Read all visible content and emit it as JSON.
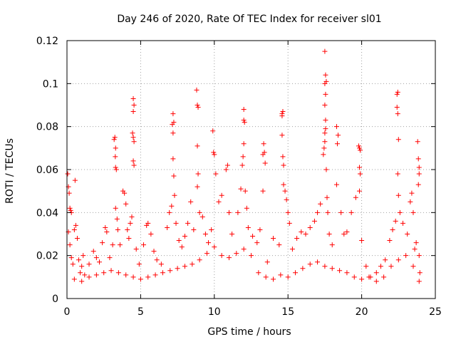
{
  "chart_data": {
    "type": "scatter",
    "title": "Day 246 of 2020, Rate Of TEC Index for receiver sl01",
    "xlabel": "GPS time / hours",
    "ylabel": "ROTI / TECUs",
    "xlim": [
      0,
      25
    ],
    "ylim": [
      0,
      0.12
    ],
    "xticks": [
      "0",
      "5",
      "10",
      "15",
      "20",
      "25"
    ],
    "yticks": [
      "0",
      "0.02",
      "0.04",
      "0.06",
      "0.08",
      "0.1",
      "0.12"
    ],
    "grid": true,
    "marker": "+",
    "color": "#ff0000",
    "series": [
      {
        "points": [
          [
            0.05,
            0.058
          ],
          [
            0.1,
            0.052
          ],
          [
            0.15,
            0.049
          ],
          [
            0.2,
            0.042
          ],
          [
            0.25,
            0.041
          ],
          [
            0.3,
            0.04
          ],
          [
            0.1,
            0.031
          ],
          [
            0.2,
            0.025
          ],
          [
            0.3,
            0.019
          ],
          [
            0.4,
            0.016
          ],
          [
            0.5,
            0.032
          ],
          [
            0.6,
            0.034
          ],
          [
            0.7,
            0.028
          ],
          [
            0.55,
            0.055
          ],
          [
            0.8,
            0.018
          ],
          [
            0.9,
            0.012
          ],
          [
            1.0,
            0.015
          ],
          [
            1.1,
            0.02
          ],
          [
            1.2,
            0.011
          ],
          [
            1.5,
            0.016
          ],
          [
            1.8,
            0.022
          ],
          [
            2.0,
            0.019
          ],
          [
            2.2,
            0.017
          ],
          [
            2.4,
            0.026
          ],
          [
            2.6,
            0.033
          ],
          [
            2.7,
            0.031
          ],
          [
            2.9,
            0.019
          ],
          [
            3.1,
            0.025
          ],
          [
            3.2,
            0.074
          ],
          [
            3.25,
            0.075
          ],
          [
            3.3,
            0.07
          ],
          [
            3.28,
            0.066
          ],
          [
            3.3,
            0.061
          ],
          [
            3.35,
            0.06
          ],
          [
            3.3,
            0.042
          ],
          [
            3.4,
            0.037
          ],
          [
            3.45,
            0.032
          ],
          [
            3.6,
            0.025
          ],
          [
            3.8,
            0.05
          ],
          [
            3.9,
            0.049
          ],
          [
            4.0,
            0.044
          ],
          [
            4.1,
            0.032
          ],
          [
            4.2,
            0.028
          ],
          [
            4.3,
            0.035
          ],
          [
            4.4,
            0.038
          ],
          [
            4.5,
            0.093
          ],
          [
            4.55,
            0.09
          ],
          [
            4.5,
            0.087
          ],
          [
            4.45,
            0.077
          ],
          [
            4.5,
            0.075
          ],
          [
            4.55,
            0.073
          ],
          [
            4.5,
            0.064
          ],
          [
            4.55,
            0.062
          ],
          [
            4.7,
            0.023
          ],
          [
            4.9,
            0.016
          ],
          [
            5.2,
            0.025
          ],
          [
            5.4,
            0.034
          ],
          [
            5.5,
            0.035
          ],
          [
            5.7,
            0.03
          ],
          [
            5.9,
            0.022
          ],
          [
            6.1,
            0.018
          ],
          [
            6.4,
            0.016
          ],
          [
            6.8,
            0.033
          ],
          [
            6.95,
            0.04
          ],
          [
            7.1,
            0.043
          ],
          [
            7.15,
            0.081
          ],
          [
            7.2,
            0.086
          ],
          [
            7.25,
            0.082
          ],
          [
            7.2,
            0.077
          ],
          [
            7.2,
            0.065
          ],
          [
            7.25,
            0.057
          ],
          [
            7.3,
            0.048
          ],
          [
            7.4,
            0.035
          ],
          [
            7.6,
            0.027
          ],
          [
            7.8,
            0.024
          ],
          [
            8.0,
            0.029
          ],
          [
            8.2,
            0.035
          ],
          [
            8.4,
            0.045
          ],
          [
            8.6,
            0.032
          ],
          [
            8.8,
            0.097
          ],
          [
            8.85,
            0.09
          ],
          [
            8.9,
            0.089
          ],
          [
            8.85,
            0.071
          ],
          [
            8.9,
            0.058
          ],
          [
            8.85,
            0.052
          ],
          [
            9.0,
            0.04
          ],
          [
            9.2,
            0.038
          ],
          [
            9.4,
            0.03
          ],
          [
            9.6,
            0.026
          ],
          [
            9.8,
            0.032
          ],
          [
            9.9,
            0.078
          ],
          [
            9.95,
            0.068
          ],
          [
            10.0,
            0.067
          ],
          [
            10.1,
            0.058
          ],
          [
            10.3,
            0.045
          ],
          [
            10.5,
            0.048
          ],
          [
            10.8,
            0.06
          ],
          [
            10.9,
            0.062
          ],
          [
            11.0,
            0.04
          ],
          [
            11.2,
            0.03
          ],
          [
            11.6,
            0.04
          ],
          [
            11.8,
            0.051
          ],
          [
            11.9,
            0.062
          ],
          [
            11.95,
            0.066
          ],
          [
            12.0,
            0.083
          ],
          [
            12.05,
            0.082
          ],
          [
            12.0,
            0.088
          ],
          [
            12.0,
            0.072
          ],
          [
            12.1,
            0.05
          ],
          [
            12.2,
            0.042
          ],
          [
            12.3,
            0.033
          ],
          [
            12.6,
            0.029
          ],
          [
            12.9,
            0.026
          ],
          [
            13.1,
            0.032
          ],
          [
            13.3,
            0.067
          ],
          [
            13.35,
            0.072
          ],
          [
            13.4,
            0.068
          ],
          [
            13.45,
            0.063
          ],
          [
            13.3,
            0.05
          ],
          [
            13.6,
            0.017
          ],
          [
            14.0,
            0.028
          ],
          [
            14.4,
            0.025
          ],
          [
            14.6,
            0.086
          ],
          [
            14.65,
            0.087
          ],
          [
            14.6,
            0.085
          ],
          [
            14.6,
            0.076
          ],
          [
            14.65,
            0.066
          ],
          [
            14.7,
            0.062
          ],
          [
            14.7,
            0.053
          ],
          [
            14.8,
            0.05
          ],
          [
            14.9,
            0.046
          ],
          [
            15.0,
            0.04
          ],
          [
            15.1,
            0.035
          ],
          [
            15.3,
            0.023
          ],
          [
            15.6,
            0.028
          ],
          [
            15.9,
            0.031
          ],
          [
            16.2,
            0.03
          ],
          [
            16.5,
            0.033
          ],
          [
            16.8,
            0.036
          ],
          [
            17.0,
            0.04
          ],
          [
            17.2,
            0.044
          ],
          [
            17.4,
            0.067
          ],
          [
            17.45,
            0.07
          ],
          [
            17.5,
            0.073
          ],
          [
            17.5,
            0.077
          ],
          [
            17.55,
            0.079
          ],
          [
            17.55,
            0.083
          ],
          [
            17.5,
            0.09
          ],
          [
            17.55,
            0.095
          ],
          [
            17.5,
            0.1
          ],
          [
            17.6,
            0.101
          ],
          [
            17.55,
            0.104
          ],
          [
            17.5,
            0.115
          ],
          [
            17.6,
            0.06
          ],
          [
            17.65,
            0.047
          ],
          [
            17.7,
            0.04
          ],
          [
            17.8,
            0.03
          ],
          [
            18.0,
            0.025
          ],
          [
            18.3,
            0.08
          ],
          [
            18.4,
            0.076
          ],
          [
            18.35,
            0.072
          ],
          [
            18.3,
            0.053
          ],
          [
            18.6,
            0.04
          ],
          [
            18.8,
            0.03
          ],
          [
            19.0,
            0.031
          ],
          [
            19.3,
            0.04
          ],
          [
            19.6,
            0.047
          ],
          [
            19.8,
            0.071
          ],
          [
            19.85,
            0.07
          ],
          [
            19.9,
            0.069
          ],
          [
            19.85,
            0.061
          ],
          [
            19.9,
            0.058
          ],
          [
            19.85,
            0.05
          ],
          [
            20.0,
            0.027
          ],
          [
            20.3,
            0.015
          ],
          [
            20.6,
            0.01
          ],
          [
            21.0,
            0.012
          ],
          [
            21.3,
            0.015
          ],
          [
            21.6,
            0.018
          ],
          [
            21.9,
            0.027
          ],
          [
            22.1,
            0.032
          ],
          [
            22.3,
            0.036
          ],
          [
            22.4,
            0.095
          ],
          [
            22.45,
            0.096
          ],
          [
            22.4,
            0.089
          ],
          [
            22.45,
            0.086
          ],
          [
            22.5,
            0.074
          ],
          [
            22.45,
            0.058
          ],
          [
            22.5,
            0.048
          ],
          [
            22.6,
            0.04
          ],
          [
            22.8,
            0.035
          ],
          [
            23.1,
            0.03
          ],
          [
            23.3,
            0.045
          ],
          [
            23.4,
            0.049
          ],
          [
            23.5,
            0.04
          ],
          [
            23.6,
            0.023
          ],
          [
            23.7,
            0.026
          ],
          [
            23.8,
            0.073
          ],
          [
            23.85,
            0.065
          ],
          [
            23.9,
            0.061
          ],
          [
            23.9,
            0.058
          ],
          [
            23.85,
            0.053
          ],
          [
            23.9,
            0.02
          ],
          [
            23.95,
            0.012
          ],
          [
            23.9,
            0.008
          ],
          [
            0.5,
            0.009
          ],
          [
            1.0,
            0.008
          ],
          [
            1.5,
            0.01
          ],
          [
            2.0,
            0.011
          ],
          [
            2.5,
            0.012
          ],
          [
            3.0,
            0.013
          ],
          [
            3.5,
            0.012
          ],
          [
            4.0,
            0.011
          ],
          [
            4.5,
            0.01
          ],
          [
            5.0,
            0.009
          ],
          [
            5.5,
            0.01
          ],
          [
            6.0,
            0.011
          ],
          [
            6.5,
            0.012
          ],
          [
            7.0,
            0.013
          ],
          [
            7.5,
            0.014
          ],
          [
            8.0,
            0.015
          ],
          [
            8.5,
            0.016
          ],
          [
            9.0,
            0.018
          ],
          [
            9.5,
            0.021
          ],
          [
            10.0,
            0.024
          ],
          [
            10.5,
            0.02
          ],
          [
            11.0,
            0.019
          ],
          [
            11.5,
            0.021
          ],
          [
            12.0,
            0.023
          ],
          [
            12.5,
            0.02
          ],
          [
            13.0,
            0.012
          ],
          [
            13.5,
            0.01
          ],
          [
            14.0,
            0.009
          ],
          [
            14.5,
            0.011
          ],
          [
            15.0,
            0.01
          ],
          [
            15.5,
            0.012
          ],
          [
            16.0,
            0.014
          ],
          [
            16.5,
            0.016
          ],
          [
            17.0,
            0.017
          ],
          [
            17.5,
            0.015
          ],
          [
            18.0,
            0.014
          ],
          [
            18.5,
            0.013
          ],
          [
            19.0,
            0.012
          ],
          [
            19.5,
            0.01
          ],
          [
            20.0,
            0.009
          ],
          [
            20.5,
            0.01
          ],
          [
            21.0,
            0.008
          ],
          [
            21.5,
            0.01
          ],
          [
            22.0,
            0.015
          ],
          [
            22.5,
            0.018
          ],
          [
            23.0,
            0.02
          ],
          [
            23.5,
            0.015
          ]
        ]
      }
    ]
  }
}
